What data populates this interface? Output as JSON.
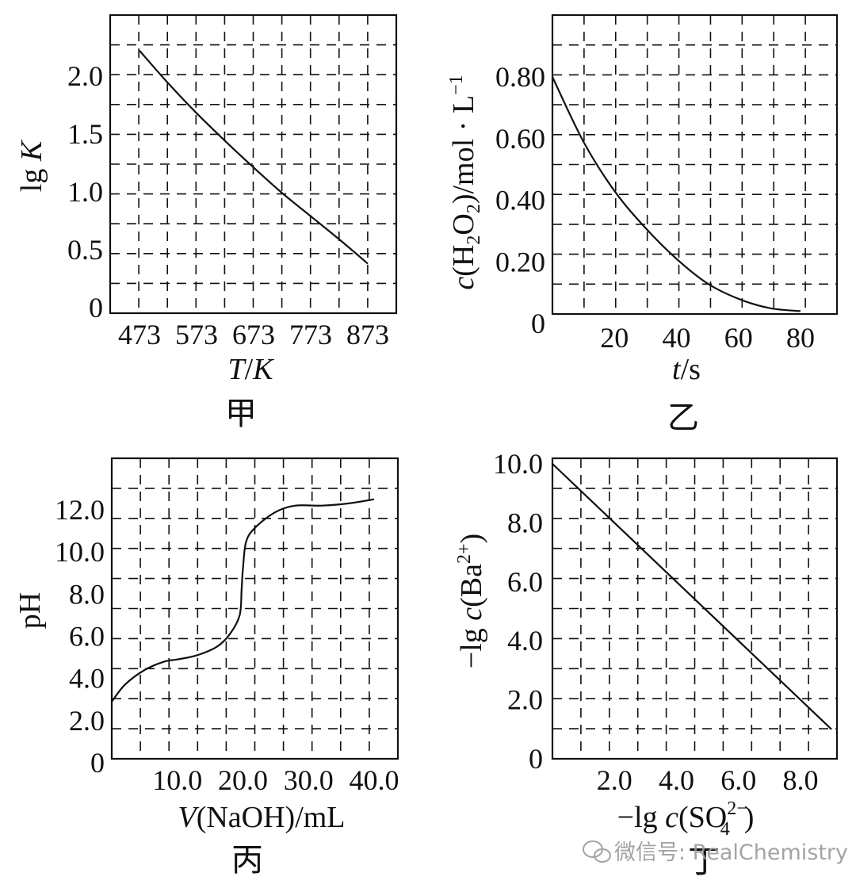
{
  "watermark": {
    "text": "微信号: RealChemistry",
    "icon": "chat-bubbles-icon",
    "color": "#9a9a9a"
  },
  "chart_data": [
    {
      "id": "jia",
      "type": "line",
      "panel_label": "甲",
      "title": "",
      "xlabel": {
        "italic": "T",
        "rest": "/",
        "italic2": "K"
      },
      "ylabel": {
        "text": "lg ",
        "italic": "K"
      },
      "xlim": [
        423,
        923
      ],
      "ylim": [
        0,
        2.5
      ],
      "x_ticks": [
        473,
        573,
        673,
        773,
        873
      ],
      "x_tick_labels": [
        "473",
        "573",
        "673",
        "773",
        "873"
      ],
      "y_ticks": [
        0,
        0.5,
        1.0,
        1.5,
        2.0
      ],
      "y_tick_labels": [
        "0",
        "0.5",
        "1.0",
        "1.5",
        "2.0"
      ],
      "grid": true,
      "series": [
        {
          "x": [
            473,
            523,
            573,
            623,
            673,
            723,
            773,
            823,
            873
          ],
          "y": [
            2.22,
            1.94,
            1.68,
            1.44,
            1.21,
            0.99,
            0.79,
            0.59,
            0.38
          ]
        }
      ]
    },
    {
      "id": "yi",
      "type": "line",
      "panel_label": "乙",
      "title": "",
      "xlabel": {
        "italic": "t",
        "rest": "/s"
      },
      "ylabel": {
        "c": "c",
        "p1": "(H",
        "s1": "2",
        "p2": "O",
        "s2": "2",
        "p3": ")/mol · L",
        "sup": "−1"
      },
      "xlim": [
        0,
        92
      ],
      "ylim": [
        0,
        1.0
      ],
      "x_ticks": [
        20,
        40,
        60,
        80
      ],
      "x_tick_labels": [
        "20",
        "40",
        "60",
        "80"
      ],
      "y_ticks": [
        0,
        0.2,
        0.4,
        0.6,
        0.8
      ],
      "y_tick_labels": [
        "0",
        "0.20",
        "0.40",
        "0.60",
        "0.80"
      ],
      "grid": true,
      "series": [
        {
          "x": [
            0,
            10,
            20,
            30,
            40,
            50,
            60,
            70,
            80
          ],
          "y": [
            0.8,
            0.59,
            0.43,
            0.31,
            0.21,
            0.13,
            0.08,
            0.05,
            0.04
          ]
        }
      ]
    },
    {
      "id": "bing",
      "type": "line",
      "panel_label": "丙",
      "title": "",
      "xlabel": {
        "italic": "V",
        "rest": "(NaOH)/mL"
      },
      "ylabel": {
        "text": "pH"
      },
      "xlim": [
        0,
        45
      ],
      "ylim": [
        0,
        14.5
      ],
      "x_ticks": [
        10,
        20,
        30,
        40
      ],
      "x_tick_labels": [
        "10.0",
        "20.0",
        "30.0",
        "40.0"
      ],
      "y_ticks": [
        0,
        2,
        4,
        6,
        8,
        10,
        12
      ],
      "y_tick_labels": [
        "0",
        "2.0",
        "4.0",
        "6.0",
        "8.0",
        "10.0",
        "12.0"
      ],
      "grid": true,
      "series": [
        {
          "x": [
            0,
            2,
            5,
            8,
            10,
            13,
            16,
            18,
            19.5,
            19.8,
            20,
            20.5,
            22,
            25,
            28,
            32,
            36,
            40
          ],
          "y": [
            2.9,
            3.7,
            4.4,
            4.8,
            4.9,
            5.1,
            5.5,
            6.1,
            7.0,
            8.2,
            9.2,
            10.5,
            11.2,
            11.9,
            12.2,
            12.2,
            12.3,
            12.5
          ]
        }
      ]
    },
    {
      "id": "ding",
      "type": "line",
      "panel_label": "丁",
      "title": "",
      "xlabel": {
        "text": "−lg ",
        "c": "c",
        "rest": "(SO",
        "sub": "4",
        "sup": "2−",
        "close": ")"
      },
      "ylabel": {
        "text": "−lg ",
        "c": "c",
        "rest": "(Ba",
        "sup": "2+",
        "close": ")"
      },
      "xlim": [
        0,
        9
      ],
      "ylim": [
        0,
        10
      ],
      "x_ticks": [
        2,
        4,
        6,
        8
      ],
      "x_tick_labels": [
        "2.0",
        "4.0",
        "6.0",
        "8.0"
      ],
      "y_ticks": [
        0,
        2,
        4,
        6,
        8,
        10
      ],
      "y_tick_labels": [
        "0",
        "2.0",
        "4.0",
        "6.0",
        "8.0",
        "10.0"
      ],
      "grid": true,
      "series": [
        {
          "x": [
            0,
            9
          ],
          "y": [
            10.0,
            1.0
          ]
        }
      ]
    }
  ]
}
